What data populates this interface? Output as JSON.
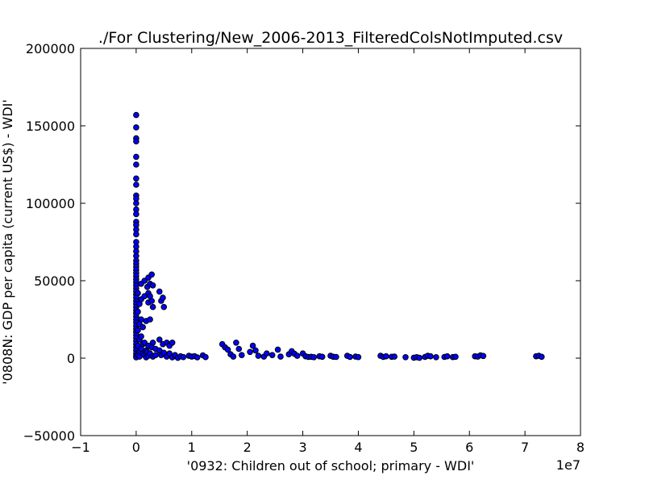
{
  "chart_data": {
    "type": "scatter",
    "title": "./For Clustering/New_2006-2013_FilteredColsNotImputed.csv",
    "xlabel": "'0932: Children out of school; primary - WDI'",
    "ylabel": "'0808N: GDP per capita  (current US$) - WDI'",
    "x_offset_label": "1e7",
    "xlim": [
      -1,
      8
    ],
    "ylim": [
      -50000,
      200000
    ],
    "x_ticks": [
      -1,
      0,
      1,
      2,
      3,
      4,
      5,
      6,
      7,
      8
    ],
    "x_tick_labels": [
      "−1",
      "0",
      "1",
      "2",
      "3",
      "4",
      "5",
      "6",
      "7",
      "8"
    ],
    "y_ticks": [
      -50000,
      0,
      50000,
      100000,
      150000,
      200000
    ],
    "y_tick_labels": [
      "−50000",
      "0",
      "50000",
      "100000",
      "150000",
      "200000"
    ],
    "point_color": "#0000ff",
    "points": [
      [
        0.0,
        157000
      ],
      [
        0.0,
        149000
      ],
      [
        0.0,
        142000
      ],
      [
        0.0,
        140000
      ],
      [
        0.0,
        130000
      ],
      [
        0.0,
        125000
      ],
      [
        0.0,
        116000
      ],
      [
        0.0,
        112000
      ],
      [
        0.0,
        105000
      ],
      [
        0.0,
        103000
      ],
      [
        0.0,
        100000
      ],
      [
        0.0,
        96000
      ],
      [
        0.0,
        93000
      ],
      [
        0.0,
        88000
      ],
      [
        0.0,
        86000
      ],
      [
        0.0,
        83000
      ],
      [
        0.0,
        80000
      ],
      [
        0.0,
        75000
      ],
      [
        0.0,
        72000
      ],
      [
        0.0,
        69000
      ],
      [
        0.0,
        66000
      ],
      [
        0.0,
        63000
      ],
      [
        0.0,
        61000
      ],
      [
        0.0,
        59000
      ],
      [
        0.0,
        57000
      ],
      [
        0.0,
        55000
      ],
      [
        0.0,
        53000
      ],
      [
        0.0,
        51000
      ],
      [
        0.0,
        49000
      ],
      [
        0.0,
        47000
      ],
      [
        0.0,
        45000
      ],
      [
        0.0,
        43000
      ],
      [
        0.0,
        41000
      ],
      [
        0.0,
        39000
      ],
      [
        0.0,
        37000
      ],
      [
        0.0,
        35000
      ],
      [
        0.0,
        33000
      ],
      [
        0.0,
        31000
      ],
      [
        0.0,
        29000
      ],
      [
        0.0,
        27000
      ],
      [
        0.0,
        25000
      ],
      [
        0.0,
        23000
      ],
      [
        0.0,
        21000
      ],
      [
        0.0,
        19000
      ],
      [
        0.0,
        17000
      ],
      [
        0.0,
        15000
      ],
      [
        0.0,
        13000
      ],
      [
        0.0,
        11000
      ],
      [
        0.0,
        9000
      ],
      [
        0.0,
        7000
      ],
      [
        0.0,
        5000
      ],
      [
        0.0,
        3000
      ],
      [
        0.0,
        1500
      ],
      [
        0.0,
        500
      ],
      [
        0.03,
        42000
      ],
      [
        0.03,
        30000
      ],
      [
        0.03,
        18000
      ],
      [
        0.03,
        8000
      ],
      [
        0.03,
        2000
      ],
      [
        0.06,
        35000
      ],
      [
        0.06,
        22000
      ],
      [
        0.06,
        12000
      ],
      [
        0.06,
        4000
      ],
      [
        0.06,
        1000
      ],
      [
        0.09,
        48000
      ],
      [
        0.09,
        38000
      ],
      [
        0.09,
        25000
      ],
      [
        0.09,
        14000
      ],
      [
        0.09,
        6000
      ],
      [
        0.12,
        20000
      ],
      [
        0.12,
        9000
      ],
      [
        0.12,
        3000
      ],
      [
        0.15,
        50000
      ],
      [
        0.15,
        40000
      ],
      [
        0.15,
        10000
      ],
      [
        0.15,
        2000
      ],
      [
        0.18,
        24000
      ],
      [
        0.18,
        5000
      ],
      [
        0.18,
        500
      ],
      [
        0.2,
        46000
      ],
      [
        0.2,
        4000
      ],
      [
        0.22,
        52000
      ],
      [
        0.22,
        42000
      ],
      [
        0.22,
        36000
      ],
      [
        0.22,
        8000
      ],
      [
        0.22,
        1500
      ],
      [
        0.25,
        48000
      ],
      [
        0.25,
        40000
      ],
      [
        0.25,
        25000
      ],
      [
        0.25,
        3000
      ],
      [
        0.28,
        54000
      ],
      [
        0.28,
        37000
      ],
      [
        0.28,
        7000
      ],
      [
        0.3,
        47000
      ],
      [
        0.3,
        33000
      ],
      [
        0.3,
        10000
      ],
      [
        0.3,
        1000
      ],
      [
        0.35,
        6000
      ],
      [
        0.35,
        2000
      ],
      [
        0.42,
        43000
      ],
      [
        0.42,
        12000
      ],
      [
        0.42,
        5000
      ],
      [
        0.45,
        37000
      ],
      [
        0.45,
        2000
      ],
      [
        0.48,
        39000
      ],
      [
        0.48,
        9000
      ],
      [
        0.5,
        33000
      ],
      [
        0.5,
        3500
      ],
      [
        0.55,
        10000
      ],
      [
        0.55,
        1000
      ],
      [
        0.6,
        8000
      ],
      [
        0.6,
        3000
      ],
      [
        0.65,
        10000
      ],
      [
        0.65,
        500
      ],
      [
        0.7,
        2000
      ],
      [
        0.75,
        200
      ],
      [
        0.8,
        1200
      ],
      [
        0.85,
        700
      ],
      [
        0.95,
        1500
      ],
      [
        1.0,
        1000
      ],
      [
        1.05,
        1300
      ],
      [
        1.1,
        500
      ],
      [
        1.2,
        1800
      ],
      [
        1.25,
        700
      ],
      [
        1.55,
        9000
      ],
      [
        1.6,
        7000
      ],
      [
        1.65,
        5500
      ],
      [
        1.7,
        2500
      ],
      [
        1.75,
        1000
      ],
      [
        1.8,
        10000
      ],
      [
        1.85,
        6000
      ],
      [
        1.9,
        2000
      ],
      [
        2.05,
        4000
      ],
      [
        2.1,
        8000
      ],
      [
        2.15,
        5000
      ],
      [
        2.2,
        1500
      ],
      [
        2.3,
        1000
      ],
      [
        2.35,
        3000
      ],
      [
        2.45,
        2000
      ],
      [
        2.55,
        5500
      ],
      [
        2.6,
        1000
      ],
      [
        2.75,
        2500
      ],
      [
        2.8,
        4500
      ],
      [
        2.85,
        2800
      ],
      [
        2.9,
        1500
      ],
      [
        3.0,
        3000
      ],
      [
        3.05,
        1200
      ],
      [
        3.1,
        800
      ],
      [
        3.15,
        900
      ],
      [
        3.2,
        600
      ],
      [
        3.3,
        1200
      ],
      [
        3.35,
        900
      ],
      [
        3.5,
        1500
      ],
      [
        3.55,
        900
      ],
      [
        3.6,
        800
      ],
      [
        3.8,
        1500
      ],
      [
        3.85,
        800
      ],
      [
        3.95,
        1000
      ],
      [
        4.0,
        700
      ],
      [
        4.4,
        1500
      ],
      [
        4.45,
        800
      ],
      [
        4.5,
        1200
      ],
      [
        4.6,
        900
      ],
      [
        4.65,
        1000
      ],
      [
        4.85,
        600
      ],
      [
        5.0,
        300
      ],
      [
        5.05,
        600
      ],
      [
        5.1,
        200
      ],
      [
        5.2,
        800
      ],
      [
        5.25,
        1500
      ],
      [
        5.3,
        1200
      ],
      [
        5.4,
        600
      ],
      [
        5.55,
        800
      ],
      [
        5.6,
        1200
      ],
      [
        5.7,
        700
      ],
      [
        5.75,
        900
      ],
      [
        6.1,
        1200
      ],
      [
        6.15,
        1000
      ],
      [
        6.2,
        1800
      ],
      [
        6.25,
        1400
      ],
      [
        7.2,
        1200
      ],
      [
        7.25,
        1500
      ],
      [
        7.3,
        900
      ]
    ]
  }
}
